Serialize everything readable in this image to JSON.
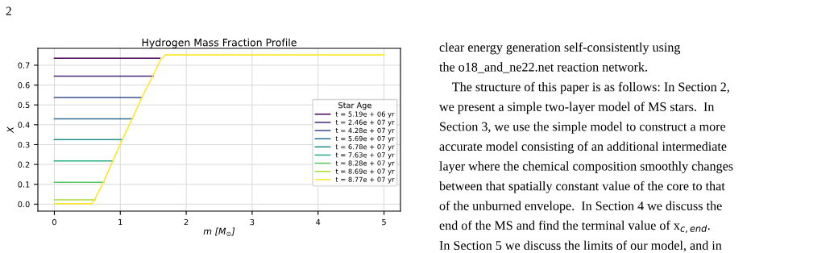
{
  "chart_data": {
    "type": "line",
    "title": "Hydrogen Mass Fraction Profile",
    "xlabel": "m [M$_{⊙}$]",
    "ylabel": "X",
    "legend_title": "Star Age",
    "legend": "right",
    "grid": true,
    "xlim": [
      -0.25,
      5.25
    ],
    "xticks": [
      0,
      1,
      2,
      3,
      4,
      5
    ],
    "ylim": [
      -0.035,
      0.785
    ],
    "yticks": [
      {
        "value": 0,
        "label": "0.0"
      },
      0.1,
      0.2,
      0.3,
      0.4,
      0.5,
      0.6,
      0.7
    ],
    "series": [
      {
        "name": "t = 5.19e + 06 yr",
        "color": "#440154",
        "x": [
          0,
          1.6
        ],
        "values": [
          0.735,
          0.735
        ]
      },
      {
        "name": "t = 2.46e + 07 yr",
        "color": "#472c7a",
        "x": [
          0,
          1.5
        ],
        "values": [
          0.645,
          0.645
        ]
      },
      {
        "name": "t = 4.28e + 07 yr",
        "color": "#3b518b",
        "x": [
          0,
          1.33
        ],
        "values": [
          0.537,
          0.537
        ]
      },
      {
        "name": "t = 5.69e + 07 yr",
        "color": "#2c718e",
        "x": [
          0,
          1.18
        ],
        "values": [
          0.43,
          0.43
        ]
      },
      {
        "name": "t = 6.78e + 07 yr",
        "color": "#21908d",
        "x": [
          0,
          1.03
        ],
        "values": [
          0.325,
          0.325
        ]
      },
      {
        "name": "t = 7.63e + 07 yr",
        "color": "#27ad81",
        "x": [
          0,
          0.89
        ],
        "values": [
          0.218,
          0.218
        ]
      },
      {
        "name": "t = 8.28e + 07 yr",
        "color": "#5cc863",
        "x": [
          0,
          0.75
        ],
        "values": [
          0.11,
          0.11
        ]
      },
      {
        "name": "t = 8.69e + 07 yr",
        "color": "#aadc32",
        "x": [
          0,
          0.62
        ],
        "values": [
          0.022,
          0.022
        ]
      },
      {
        "name": "t = 8.77e + 07 yr",
        "color": "#fde725",
        "x": [
          0,
          0.57,
          0.62,
          0.75,
          0.89,
          1.03,
          1.18,
          1.33,
          1.5,
          1.6,
          1.68,
          5
        ],
        "values": [
          0.003,
          0.003,
          0.03,
          0.115,
          0.22,
          0.325,
          0.43,
          0.54,
          0.65,
          0.72,
          0.752,
          0.752
        ]
      }
    ],
    "annotations": [
      "2",
      "clear energy generation self-consistently using",
      "the o18_and_ne22.net reaction network.",
      "    The structure of this paper is as follows: In Section 2,",
      "we present a simple two-layer model of MS stars.  In",
      "Section 3, we use the simple model to construct a more",
      "accurate model consisting of an additional intermediate",
      "layer where the chemical composition smoothly changes",
      "between that spatially constant value of the core to that",
      "of the unburned envelope.  In Section 4 we discuss the",
      "end of the MS and find the terminal value of x$_{c,end}$.",
      "In Section 5 we discuss the limits of our model, and in"
    ]
  }
}
